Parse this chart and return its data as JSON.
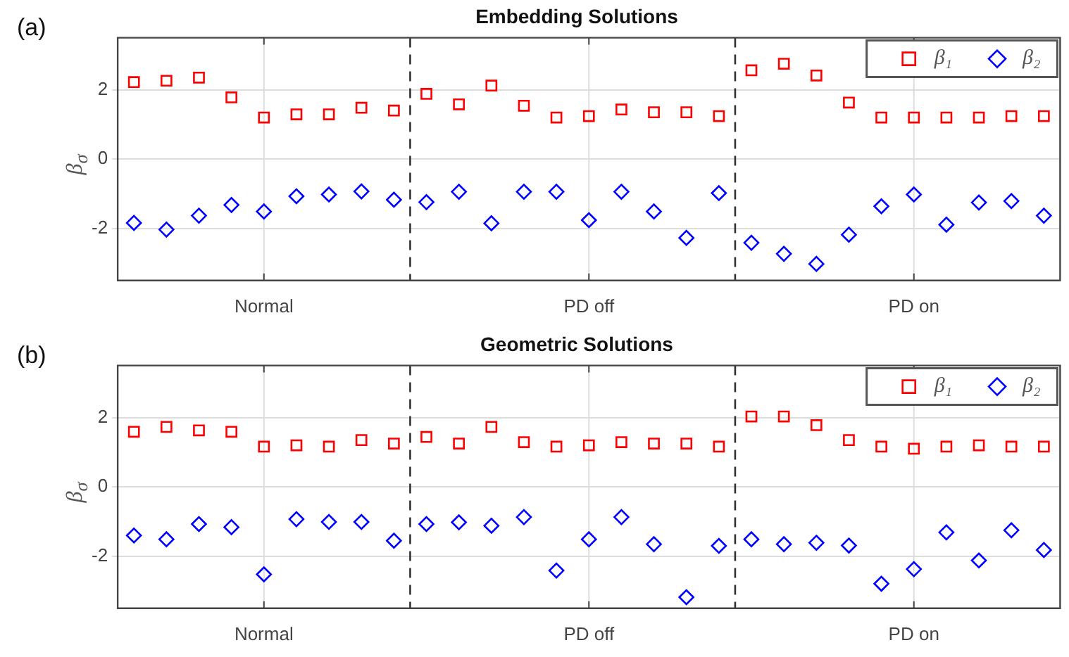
{
  "chart_data": [
    {
      "type": "scatter",
      "title": "Embedding Solutions",
      "ylabel": "β$_{σ}$",
      "annotations": [
        "(a)"
      ],
      "categories": [
        null,
        null,
        null,
        null,
        "Normal",
        null,
        null,
        null,
        null,
        null,
        null,
        null,
        null,
        null,
        "PD off",
        null,
        null,
        null,
        null,
        null,
        null,
        null,
        null,
        null,
        "PD on",
        null,
        null,
        null,
        null
      ],
      "ylim": [
        -3.5,
        3.5
      ],
      "yticks": [
        -2,
        0,
        2
      ],
      "grid": true,
      "legend": "top right",
      "series": [
        {
          "name": "β₁",
          "color": "#ff0000",
          "marker": "square",
          "values": [
            2.22,
            2.26,
            2.35,
            1.78,
            1.2,
            1.29,
            1.29,
            1.48,
            1.4,
            1.88,
            1.58,
            2.12,
            1.54,
            1.2,
            1.24,
            1.43,
            1.35,
            1.35,
            1.24,
            2.56,
            2.75,
            2.41,
            1.63,
            1.2,
            1.2,
            1.2,
            1.2,
            1.24,
            1.24
          ]
        },
        {
          "name": "β₂",
          "color": "#0000ff",
          "marker": "diamond",
          "values": [
            -1.84,
            -2.03,
            -1.63,
            -1.32,
            -1.51,
            -1.07,
            -1.02,
            -0.93,
            -1.17,
            -1.24,
            -0.94,
            -1.85,
            -0.94,
            -0.94,
            -1.76,
            -0.94,
            -1.51,
            -2.27,
            -0.98,
            -2.41,
            -2.73,
            -3.02,
            -2.18,
            -1.36,
            -1.02,
            -1.89,
            -1.25,
            -1.21,
            -1.63
          ]
        }
      ]
    },
    {
      "type": "scatter",
      "title": "Geometric Solutions",
      "ylabel": "β$_{σ}$",
      "annotations": [
        "(b)"
      ],
      "categories": [
        null,
        null,
        null,
        null,
        "Normal",
        null,
        null,
        null,
        null,
        null,
        null,
        null,
        null,
        null,
        "PD off",
        null,
        null,
        null,
        null,
        null,
        null,
        null,
        null,
        null,
        "PD on",
        null,
        null,
        null,
        null
      ],
      "ylim": [
        -3.5,
        3.5
      ],
      "yticks": [
        -2,
        0,
        2
      ],
      "grid": true,
      "legend": "top right",
      "series": [
        {
          "name": "β₁",
          "color": "#ff0000",
          "marker": "square",
          "values": [
            1.59,
            1.73,
            1.63,
            1.59,
            1.16,
            1.2,
            1.16,
            1.35,
            1.25,
            1.44,
            1.25,
            1.73,
            1.29,
            1.16,
            1.2,
            1.29,
            1.25,
            1.25,
            1.16,
            2.03,
            2.03,
            1.78,
            1.35,
            1.16,
            1.1,
            1.16,
            1.2,
            1.16,
            1.16
          ]
        },
        {
          "name": "β₂",
          "color": "#0000ff",
          "marker": "diamond",
          "values": [
            -1.4,
            -1.51,
            -1.07,
            -1.16,
            -2.52,
            -0.93,
            -1.01,
            -1.01,
            -1.55,
            -1.07,
            -1.02,
            -1.12,
            -0.87,
            -2.41,
            -1.51,
            -0.87,
            -1.65,
            -3.18,
            -1.7,
            -1.51,
            -1.65,
            -1.61,
            -1.69,
            -2.79,
            -2.37,
            -1.31,
            -2.12,
            -1.25,
            -1.82
          ]
        }
      ]
    }
  ]
}
